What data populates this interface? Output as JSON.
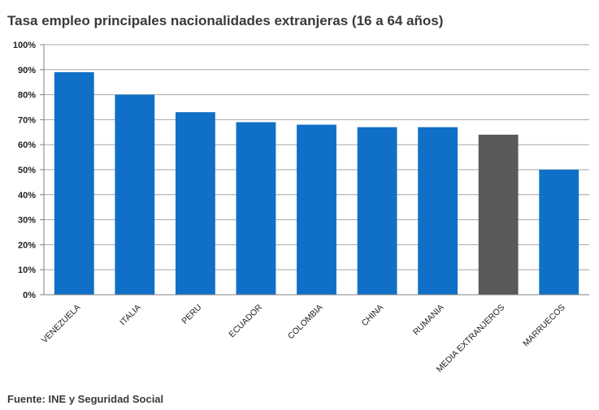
{
  "chart_data": {
    "type": "bar",
    "title": "Tasa empleo principales nacionalidades extranjeras (16 a 64 años)",
    "xlabel": "",
    "ylabel": "",
    "ylim": [
      0,
      100
    ],
    "y_ticks": [
      "0%",
      "10%",
      "20%",
      "30%",
      "40%",
      "50%",
      "60%",
      "70%",
      "80%",
      "90%",
      "100%"
    ],
    "grid": true,
    "categories": [
      "VENEZUELA",
      "ITALIA",
      "PERU",
      "ECUADOR",
      "COLOMBIA",
      "CHINA",
      "RUMANIA",
      "MEDIA EXTRANJEROS",
      "MARRUECOS"
    ],
    "values": [
      89,
      80,
      73,
      69,
      68,
      67,
      67,
      64,
      50
    ],
    "colors": [
      "#1070c8",
      "#1070c8",
      "#1070c8",
      "#1070c8",
      "#1070c8",
      "#1070c8",
      "#1070c8",
      "#595959",
      "#1070c8"
    ],
    "source": "Fuente: INE y Seguridad Social"
  }
}
